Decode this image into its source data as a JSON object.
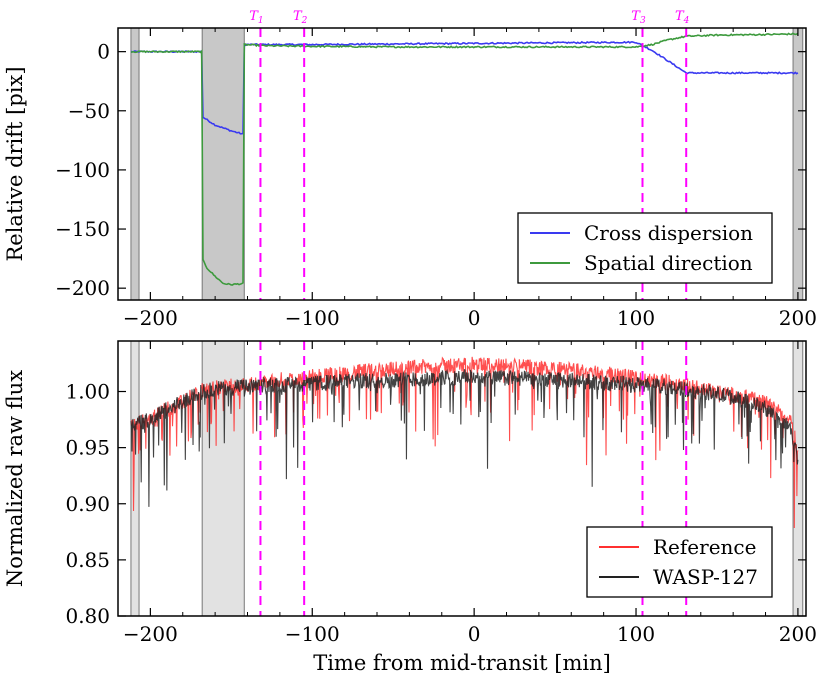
{
  "chart_data": [
    {
      "type": "line",
      "panel": "top",
      "xlabel": "",
      "ylabel": "Relative drift [pix]",
      "xlim": [
        -220,
        205
      ],
      "ylim": [
        -210,
        20
      ],
      "xticks": [
        -200,
        -100,
        0,
        100,
        200
      ],
      "yticks": [
        0,
        -50,
        -100,
        -150,
        -200
      ],
      "xtick_labels": [
        "−200",
        "−100",
        "0",
        "100",
        "200"
      ],
      "ytick_labels": [
        "0",
        "−50",
        "−100",
        "−150",
        "−200"
      ],
      "transit_markers": [
        {
          "label": "T",
          "sub": "1",
          "x": -132
        },
        {
          "label": "T",
          "sub": "2",
          "x": -105
        },
        {
          "label": "T",
          "sub": "3",
          "x": 104
        },
        {
          "label": "T",
          "sub": "4",
          "x": 131
        }
      ],
      "shaded_regions": [
        [
          -212,
          -207
        ],
        [
          -168,
          -142
        ],
        [
          197,
          203
        ]
      ],
      "legend": {
        "position": "bottom-right",
        "entries": [
          {
            "label": "Cross dispersion",
            "color": "#3a3af0"
          },
          {
            "label": "Spatial direction",
            "color": "#3d9a3d"
          }
        ]
      },
      "series": [
        {
          "name": "Cross dispersion",
          "color": "#3a3af0",
          "x": [
            -212,
            -168,
            -168,
            -160,
            -150,
            -142,
            -142,
            -130,
            -100,
            -50,
            0,
            50,
            100,
            110,
            120,
            131,
            150,
            180,
            200
          ],
          "y": [
            0,
            0,
            -55,
            -62,
            -67,
            -70,
            6,
            6,
            6,
            6.5,
            7,
            7.5,
            8,
            1,
            -8,
            -18,
            -18,
            -18,
            -18
          ]
        },
        {
          "name": "Spatial direction",
          "color": "#3d9a3d",
          "x": [
            -212,
            -168,
            -168,
            -165,
            -160,
            -155,
            -150,
            -142,
            -142,
            -130,
            -100,
            -50,
            0,
            50,
            100,
            110,
            120,
            131,
            150,
            180,
            200
          ],
          "y": [
            0,
            0,
            -175,
            -183,
            -190,
            -196,
            -197,
            -196,
            6,
            5,
            4.5,
            4,
            4,
            4,
            4,
            6,
            10,
            13,
            14,
            14.5,
            15
          ]
        }
      ]
    },
    {
      "type": "line",
      "panel": "bottom",
      "xlabel": "Time from mid-transit [min]",
      "ylabel": "Normalized raw flux",
      "xlim": [
        -220,
        205
      ],
      "ylim": [
        0.8,
        1.045
      ],
      "xticks": [
        -200,
        -100,
        0,
        100,
        200
      ],
      "yticks": [
        0.8,
        0.85,
        0.9,
        0.95,
        1.0
      ],
      "xtick_labels": [
        "−200",
        "−100",
        "0",
        "100",
        "200"
      ],
      "ytick_labels": [
        "0.80",
        "0.85",
        "0.90",
        "0.95",
        "1.00"
      ],
      "transit_markers": [
        {
          "x": -132
        },
        {
          "x": -105
        },
        {
          "x": 104
        },
        {
          "x": 131
        }
      ],
      "shaded_regions": [
        [
          -212,
          -207
        ],
        [
          -168,
          -142
        ],
        [
          197,
          203
        ]
      ],
      "legend": {
        "position": "bottom-right",
        "entries": [
          {
            "label": "Reference",
            "color": "#ff3030"
          },
          {
            "label": "WASP-127",
            "color": "#222222"
          }
        ]
      },
      "series": [
        {
          "name": "Reference",
          "color": "#ff3030",
          "x": [
            -212,
            -200,
            -190,
            -180,
            -170,
            -160,
            -150,
            -140,
            -130,
            -120,
            -100,
            -80,
            -60,
            -40,
            -20,
            0,
            20,
            40,
            60,
            80,
            100,
            120,
            140,
            160,
            180,
            195,
            200
          ],
          "y": [
            0.97,
            0.975,
            0.985,
            0.99,
            1.0,
            1.003,
            1.005,
            1.006,
            1.008,
            1.01,
            1.013,
            1.016,
            1.019,
            1.021,
            1.023,
            1.024,
            1.023,
            1.021,
            1.019,
            1.016,
            1.012,
            1.008,
            1.003,
            0.998,
            0.99,
            0.975,
            0.95
          ]
        },
        {
          "name": "WASP-127",
          "color": "#222222",
          "x": [
            -212,
            -200,
            -190,
            -180,
            -170,
            -160,
            -150,
            -140,
            -130,
            -120,
            -100,
            -80,
            -60,
            -40,
            -20,
            0,
            20,
            40,
            60,
            80,
            100,
            120,
            140,
            160,
            180,
            195,
            200
          ],
          "y": [
            0.97,
            0.975,
            0.985,
            0.99,
            0.999,
            1.002,
            1.004,
            1.004,
            1.005,
            1.006,
            1.007,
            1.009,
            1.01,
            1.011,
            1.012,
            1.013,
            1.012,
            1.011,
            1.01,
            1.008,
            1.006,
            1.004,
            1.0,
            0.995,
            0.985,
            0.97,
            0.94
          ]
        }
      ]
    }
  ]
}
